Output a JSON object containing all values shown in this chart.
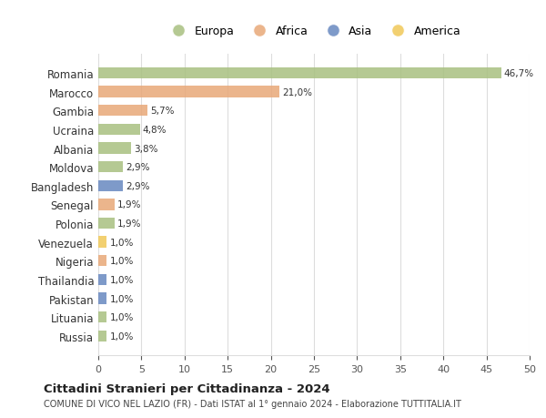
{
  "countries": [
    "Russia",
    "Lituania",
    "Pakistan",
    "Thailandia",
    "Nigeria",
    "Venezuela",
    "Polonia",
    "Senegal",
    "Bangladesh",
    "Moldova",
    "Albania",
    "Ucraina",
    "Gambia",
    "Marocco",
    "Romania"
  ],
  "values": [
    1.0,
    1.0,
    1.0,
    1.0,
    1.0,
    1.0,
    1.9,
    1.9,
    2.9,
    2.9,
    3.8,
    4.8,
    5.7,
    21.0,
    46.7
  ],
  "labels": [
    "1,0%",
    "1,0%",
    "1,0%",
    "1,0%",
    "1,0%",
    "1,0%",
    "1,9%",
    "1,9%",
    "2,9%",
    "2,9%",
    "3,8%",
    "4,8%",
    "5,7%",
    "21,0%",
    "46,7%"
  ],
  "bar_colors": [
    "#a8c080",
    "#a8c080",
    "#6888c0",
    "#6888c0",
    "#e8a878",
    "#f0c858",
    "#a8c080",
    "#e8a878",
    "#6888c0",
    "#a8c080",
    "#a8c080",
    "#a8c080",
    "#e8a878",
    "#e8a878",
    "#a8c080"
  ],
  "title": "Cittadini Stranieri per Cittadinanza - 2024",
  "subtitle": "COMUNE DI VICO NEL LAZIO (FR) - Dati ISTAT al 1° gennaio 2024 - Elaborazione TUTTITALIA.IT",
  "xlim": [
    0,
    50
  ],
  "xticks": [
    0,
    5,
    10,
    15,
    20,
    25,
    30,
    35,
    40,
    45,
    50
  ],
  "legend_labels": [
    "Europa",
    "Africa",
    "Asia",
    "America"
  ],
  "legend_colors": [
    "#a8c080",
    "#e8a878",
    "#6888c0",
    "#f0c858"
  ],
  "bg_color": "#ffffff",
  "grid_color": "#dddddd"
}
